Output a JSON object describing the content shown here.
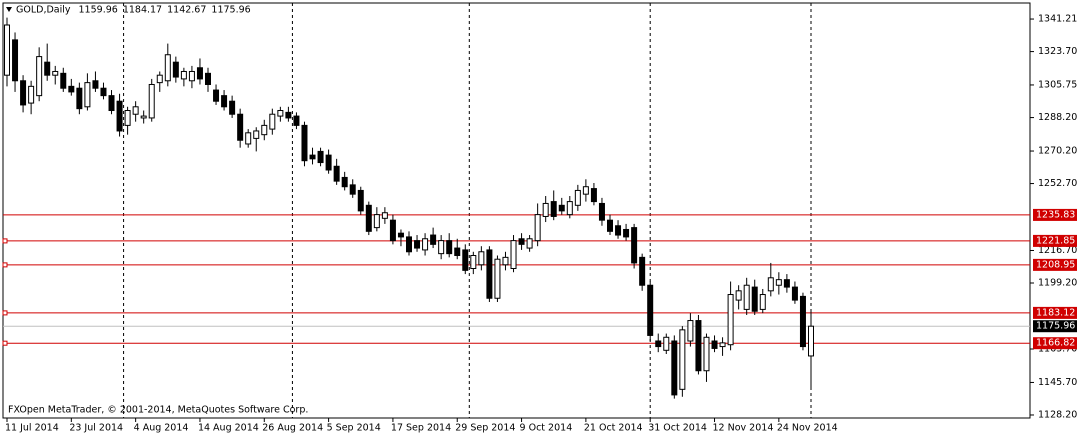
{
  "chart_data": {
    "type": "candlestick",
    "title": "GOLD,Daily",
    "footer": "FXOpen MetaTrader, © 2001-2014, MetaQuotes Software Corp.",
    "categories": [
      "11 Jul 2014",
      null,
      null,
      null,
      null,
      null,
      null,
      null,
      "23 Jul 2014",
      null,
      null,
      null,
      null,
      null,
      null,
      null,
      "4 Aug 2014",
      null,
      null,
      null,
      null,
      null,
      null,
      null,
      "14 Aug 2014",
      null,
      null,
      null,
      null,
      null,
      null,
      null,
      "26 Aug 2014",
      null,
      null,
      null,
      null,
      null,
      null,
      null,
      "5 Sep 2014",
      null,
      null,
      null,
      null,
      null,
      null,
      null,
      "17 Sep 2014",
      null,
      null,
      null,
      null,
      null,
      null,
      null,
      "29 Sep 2014",
      null,
      null,
      null,
      null,
      null,
      null,
      null,
      "9 Oct 2014",
      null,
      null,
      null,
      null,
      null,
      null,
      null,
      "21 Oct 2014",
      null,
      null,
      null,
      null,
      null,
      null,
      null,
      "31 Oct 2014",
      null,
      null,
      null,
      null,
      null,
      null,
      null,
      "12 Nov 2014",
      null,
      null,
      null,
      null,
      null,
      null,
      null,
      "24 Nov 2014",
      null,
      null,
      null,
      null
    ],
    "open": [
      1311,
      1330,
      1308,
      1296,
      1300,
      1318,
      1311,
      1312,
      1305,
      1304,
      1294,
      1308,
      1304,
      1300,
      1297,
      1284,
      1290,
      1288,
      1288,
      1307,
      1308,
      1318,
      1309,
      1308,
      1315,
      1312,
      1303,
      1300,
      1297,
      1290,
      1274,
      1277,
      1279,
      1282,
      1289,
      1291,
      1289,
      1284,
      1268,
      1270,
      1268,
      1262,
      1256,
      1252,
      1249,
      1241,
      1229,
      1234,
      1233,
      1226,
      1224,
      1222,
      1217,
      1225,
      1215,
      1222,
      1218,
      1217,
      1207,
      1209,
      1217,
      1191,
      1209,
      1207,
      1223,
      1218,
      1222,
      1235,
      1243,
      1241,
      1236,
      1241,
      1247,
      1250,
      1242,
      1233,
      1230,
      1228,
      1229,
      1213,
      1198,
      1168,
      1163,
      1168,
      1142,
      1168,
      1179,
      1152,
      1168,
      1165,
      1166,
      1190,
      1185,
      1197,
      1185,
      1195,
      1198,
      1201,
      1197,
      1192,
      1159.96
    ],
    "high": [
      1342,
      1334,
      1311,
      1308,
      1326,
      1328,
      1316,
      1315,
      1309,
      1307,
      1312,
      1313,
      1307,
      1303,
      1301,
      1294,
      1297,
      1292,
      1309,
      1313,
      1328,
      1321,
      1315,
      1316,
      1320,
      1315,
      1306,
      1303,
      1300,
      1293,
      1282,
      1283,
      1287,
      1293,
      1294,
      1294,
      1291,
      1286,
      1272,
      1272,
      1271,
      1266,
      1259,
      1255,
      1251,
      1243,
      1240,
      1240,
      1236,
      1228,
      1227,
      1225,
      1226,
      1229,
      1225,
      1226,
      1223,
      1220,
      1216,
      1219,
      1219,
      1214,
      1216,
      1225,
      1226,
      1225,
      1242,
      1246,
      1249,
      1245,
      1246,
      1252,
      1255,
      1253,
      1245,
      1236,
      1233,
      1231,
      1231,
      1215,
      1200,
      1172,
      1172,
      1171,
      1176,
      1183,
      1182,
      1172,
      1171,
      1170,
      1200,
      1198,
      1202,
      1201,
      1196,
      1210,
      1205,
      1204,
      1200,
      1194,
      1184.17
    ],
    "low": [
      1305,
      1302,
      1291,
      1290,
      1297,
      1308,
      1306,
      1302,
      1300,
      1290,
      1292,
      1302,
      1298,
      1290,
      1278,
      1279,
      1286,
      1285,
      1286,
      1302,
      1305,
      1307,
      1305,
      1304,
      1306,
      1302,
      1295,
      1292,
      1288,
      1272,
      1272,
      1270,
      1276,
      1279,
      1286,
      1286,
      1282,
      1262,
      1263,
      1262,
      1258,
      1252,
      1249,
      1245,
      1236,
      1225,
      1227,
      1231,
      1220,
      1219,
      1214,
      1216,
      1214,
      1218,
      1212,
      1213,
      1212,
      1204,
      1204,
      1206,
      1189,
      1189,
      1206,
      1205,
      1217,
      1216,
      1219,
      1232,
      1233,
      1236,
      1234,
      1238,
      1243,
      1241,
      1230,
      1225,
      1223,
      1222,
      1207,
      1195,
      1168,
      1162,
      1161,
      1137,
      1138,
      1165,
      1150,
      1146,
      1162,
      1160,
      1163,
      1185,
      1182,
      1182,
      1183,
      1192,
      1193,
      1194,
      1188,
      1163,
      1142.67
    ],
    "close": [
      1338,
      1308,
      1295,
      1305,
      1321,
      1311,
      1313,
      1304,
      1302,
      1293,
      1307,
      1304,
      1300,
      1292,
      1281,
      1292,
      1294,
      1289,
      1306,
      1311,
      1322,
      1310,
      1313,
      1313,
      1309,
      1306,
      1297,
      1294,
      1290,
      1276,
      1280,
      1281,
      1284,
      1290,
      1292,
      1288,
      1284,
      1265,
      1266,
      1264,
      1260,
      1254,
      1251,
      1247,
      1238,
      1227,
      1236,
      1237,
      1222,
      1224,
      1216,
      1218,
      1223,
      1220,
      1222,
      1215,
      1214,
      1206,
      1214,
      1216,
      1191,
      1212,
      1213,
      1222,
      1220,
      1223,
      1236,
      1242,
      1235,
      1238,
      1243,
      1249,
      1251,
      1243,
      1233,
      1227,
      1225,
      1224,
      1210,
      1198,
      1171,
      1165,
      1170,
      1139,
      1174,
      1179,
      1152,
      1170,
      1164,
      1167,
      1193,
      1195,
      1198,
      1184,
      1193,
      1202,
      1201,
      1197,
      1190,
      1165,
      1175.96
    ],
    "ylim": [
      1125.5,
      1349.3
    ],
    "yticks": [
      1341.21,
      {
        "value": 1323.7,
        "label": "1323.70"
      },
      1305.75,
      {
        "value": 1288.2,
        "label": "1288.20"
      },
      {
        "value": 1270.2,
        "label": "1270.20"
      },
      {
        "value": 1252.7,
        "label": "1252.70"
      },
      {
        "value": 1216.7,
        "label": "1216.70"
      },
      {
        "value": 1199.2,
        "label": "1199.20"
      },
      {
        "value": 1163.7,
        "label": "1163.70"
      },
      {
        "value": 1145.7,
        "label": "1145.70"
      },
      {
        "value": 1128.2,
        "label": "1128.20"
      }
    ],
    "levels": [
      1235.83,
      1221.85,
      1208.95,
      1183.12,
      1166.82
    ],
    "level_color": "#d00000"
  }
}
